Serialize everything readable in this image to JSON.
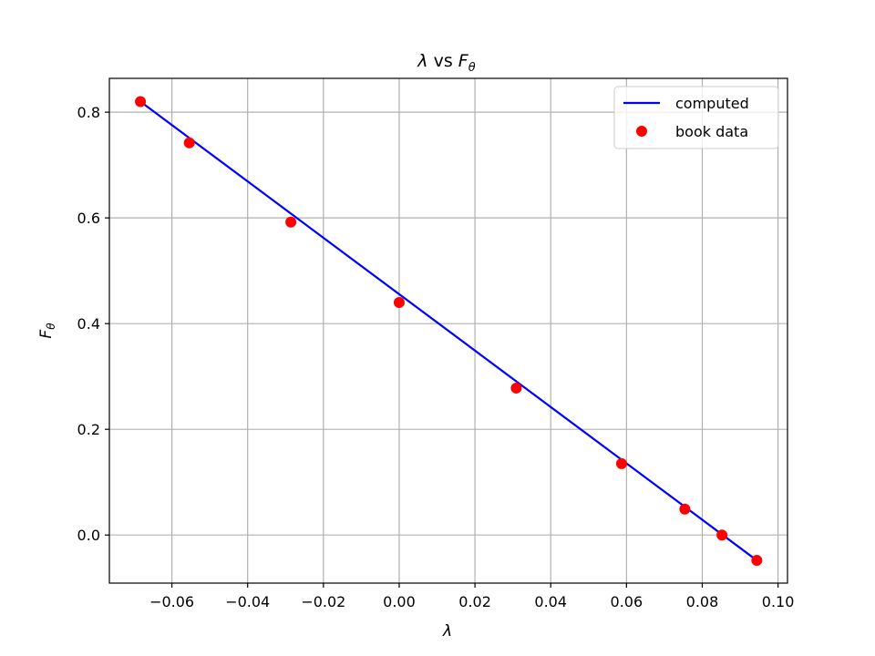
{
  "chart_data": {
    "type": "line",
    "title": "λ vs Fθ",
    "title_parts": {
      "lhs": "λ",
      "mid": " vs ",
      "var": "F",
      "sub": "θ"
    },
    "xlabel": "λ",
    "ylabel": "Fθ",
    "ylabel_parts": {
      "var": "F",
      "sub": "θ"
    },
    "xlim": [
      -0.0765,
      0.1025
    ],
    "ylim": [
      -0.091,
      0.864
    ],
    "xticks": [
      -0.06,
      -0.04,
      -0.02,
      0.0,
      0.02,
      0.04,
      0.06,
      0.08,
      0.1
    ],
    "xtick_labels": [
      "−0.06",
      "−0.04",
      "−0.02",
      "0.00",
      "0.02",
      "0.04",
      "0.06",
      "0.08",
      "0.10"
    ],
    "yticks": [
      0.0,
      0.2,
      0.4,
      0.6,
      0.8
    ],
    "ytick_labels": [
      "0.0",
      "0.2",
      "0.4",
      "0.6",
      "0.8"
    ],
    "grid": true,
    "legend_position": "top-right",
    "series": [
      {
        "name": "computed",
        "style": "line",
        "color": "#0000ff",
        "x": [
          -0.0683,
          0.0944
        ],
        "y": [
          0.82,
          -0.048
        ]
      },
      {
        "name": "book data",
        "style": "marker",
        "color": "#ff0000",
        "x": [
          -0.0683,
          -0.0554,
          -0.0286,
          0.0,
          0.0309,
          0.0587,
          0.0754,
          0.0852,
          0.0944
        ],
        "y": [
          0.82,
          0.742,
          0.592,
          0.44,
          0.278,
          0.135,
          0.049,
          0.0,
          -0.048
        ]
      }
    ]
  }
}
